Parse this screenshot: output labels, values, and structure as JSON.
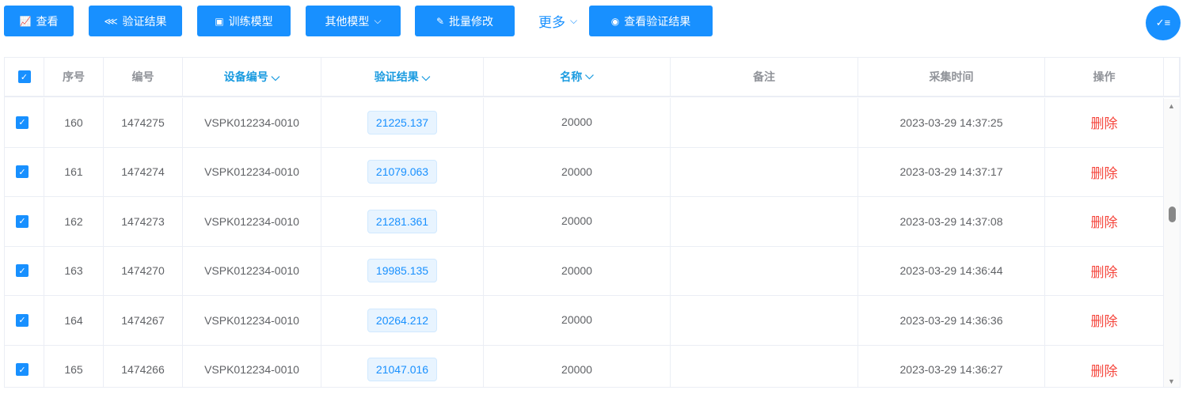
{
  "toolbar": {
    "view": "查看",
    "verify_result": "验证结果",
    "train_model": "训练模型",
    "other_models": "其他模型",
    "batch_edit": "批量修改",
    "more": "更多",
    "view_verify_result": "查看验证结果"
  },
  "table": {
    "headers": [
      "序号",
      "编号",
      "设备编号",
      "验证结果",
      "名称",
      "备注",
      "采集时间",
      "操作"
    ],
    "rows": [
      {
        "seq": "160",
        "id": "1474275",
        "device": "VSPK012234-0010",
        "result": "21225.137",
        "name": "20000",
        "note": "",
        "time": "2023-03-29 14:37:25",
        "action": "删除"
      },
      {
        "seq": "161",
        "id": "1474274",
        "device": "VSPK012234-0010",
        "result": "21079.063",
        "name": "20000",
        "note": "",
        "time": "2023-03-29 14:37:17",
        "action": "删除"
      },
      {
        "seq": "162",
        "id": "1474273",
        "device": "VSPK012234-0010",
        "result": "21281.361",
        "name": "20000",
        "note": "",
        "time": "2023-03-29 14:37:08",
        "action": "删除"
      },
      {
        "seq": "163",
        "id": "1474270",
        "device": "VSPK012234-0010",
        "result": "19985.135",
        "name": "20000",
        "note": "",
        "time": "2023-03-29 14:36:44",
        "action": "删除"
      },
      {
        "seq": "164",
        "id": "1474267",
        "device": "VSPK012234-0010",
        "result": "20264.212",
        "name": "20000",
        "note": "",
        "time": "2023-03-29 14:36:36",
        "action": "删除"
      },
      {
        "seq": "165",
        "id": "1474266",
        "device": "VSPK012234-0010",
        "result": "21047.016",
        "name": "20000",
        "note": "",
        "time": "2023-03-29 14:36:27",
        "action": "删除"
      }
    ]
  }
}
